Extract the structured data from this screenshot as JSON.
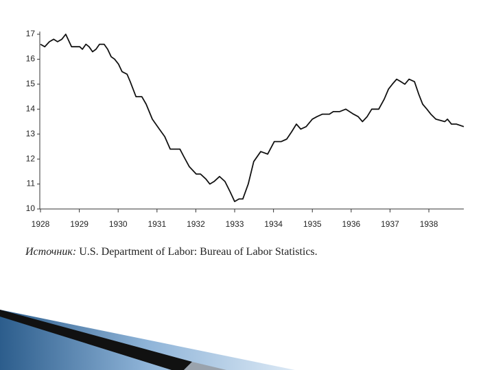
{
  "chart_data": {
    "type": "line",
    "x": [
      1928.0,
      1928.11,
      1928.23,
      1928.34,
      1928.44,
      1928.55,
      1928.65,
      1928.8,
      1929.01,
      1929.08,
      1929.17,
      1929.25,
      1929.34,
      1929.43,
      1929.52,
      1929.64,
      1929.73,
      1929.82,
      1929.91,
      1930.01,
      1930.1,
      1930.23,
      1930.31,
      1930.46,
      1930.61,
      1930.72,
      1930.88,
      1931.06,
      1931.2,
      1931.34,
      1931.59,
      1931.69,
      1931.83,
      1932.01,
      1932.12,
      1932.26,
      1932.36,
      1932.47,
      1932.61,
      1932.75,
      1932.88,
      1933.0,
      1933.11,
      1933.21,
      1933.35,
      1933.49,
      1933.67,
      1933.85,
      1934.02,
      1934.2,
      1934.34,
      1934.47,
      1934.59,
      1934.7,
      1934.84,
      1935.0,
      1935.12,
      1935.26,
      1935.44,
      1935.54,
      1935.7,
      1935.86,
      1936.06,
      1936.18,
      1936.29,
      1936.41,
      1936.53,
      1936.71,
      1936.85,
      1936.96,
      1937.06,
      1937.17,
      1937.28,
      1937.38,
      1937.49,
      1937.63,
      1937.74,
      1937.84,
      1937.95,
      1938.05,
      1938.18,
      1938.41,
      1938.48,
      1938.58,
      1938.71,
      1938.9
    ],
    "values": [
      16.6,
      16.5,
      16.7,
      16.8,
      16.7,
      16.8,
      17.0,
      16.5,
      16.5,
      16.4,
      16.6,
      16.5,
      16.3,
      16.4,
      16.6,
      16.6,
      16.4,
      16.1,
      16.0,
      15.8,
      15.5,
      15.4,
      15.1,
      14.5,
      14.5,
      14.2,
      13.6,
      13.2,
      12.9,
      12.4,
      12.4,
      12.1,
      11.7,
      11.4,
      11.4,
      11.2,
      11.0,
      11.1,
      11.3,
      11.1,
      10.7,
      10.3,
      10.4,
      10.4,
      11.0,
      11.9,
      12.3,
      12.2,
      12.7,
      12.7,
      12.8,
      13.1,
      13.4,
      13.2,
      13.3,
      13.6,
      13.7,
      13.8,
      13.8,
      13.9,
      13.9,
      14.0,
      13.8,
      13.7,
      13.5,
      13.7,
      14.0,
      14.0,
      14.4,
      14.8,
      15.0,
      15.2,
      15.1,
      15.0,
      15.2,
      15.1,
      14.6,
      14.2,
      14.0,
      13.8,
      13.6,
      13.5,
      13.6,
      13.4,
      13.4,
      13.3
    ],
    "color": "#111111",
    "xlim": [
      1928,
      1938.9
    ],
    "xticks": [
      1928,
      1929,
      1930,
      1931,
      1932,
      1933,
      1934,
      1935,
      1936,
      1937,
      1938
    ],
    "ylim": [
      10,
      17
    ],
    "yticks": [
      10,
      11,
      12,
      13,
      14,
      15,
      16,
      17
    ],
    "grid": false,
    "source_label": "Источник:",
    "source_text": "U.S. Department of Labor: Bureau of Labor Statistics."
  }
}
